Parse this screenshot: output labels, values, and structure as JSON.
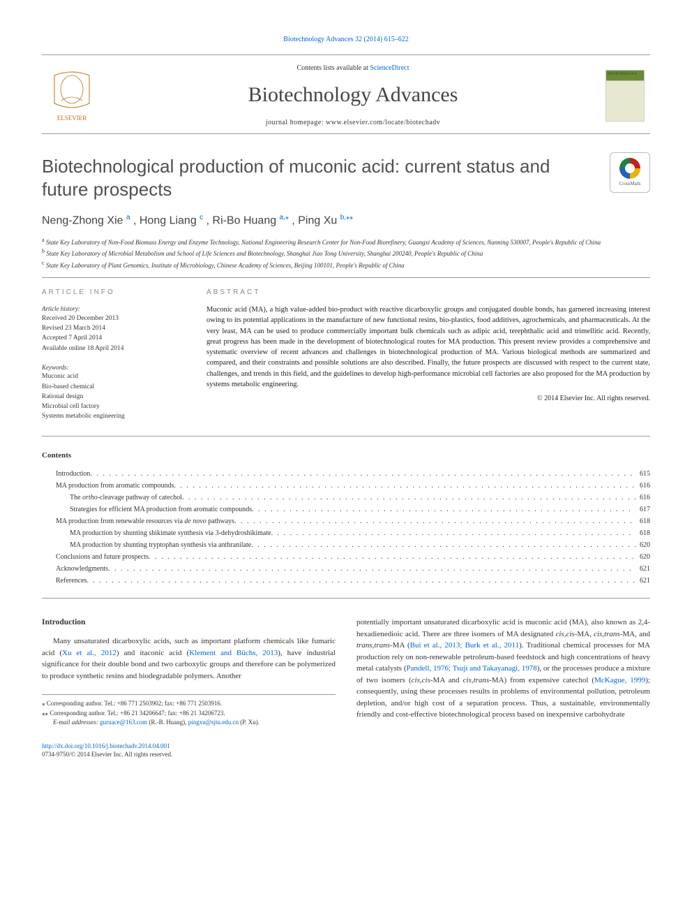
{
  "meta": {
    "citation_link": "Biotechnology Advances 32 (2014) 615–622",
    "contents_line_prefix": "Contents lists available at ",
    "contents_line_link": "ScienceDirect",
    "journal_title": "Biotechnology Advances",
    "journal_homepage": "journal homepage: www.elsevier.com/locate/biotechadv",
    "cover_text": "BIOTECHNOLOGY"
  },
  "crossmark": {
    "label": "CrossMark"
  },
  "title": "Biotechnological production of muconic acid: current status and future prospects",
  "authors": {
    "a1_name": "Neng-Zhong Xie ",
    "a1_sup": "a",
    "a2_name": ", Hong Liang ",
    "a2_sup": "c",
    "a3_name": ", Ri-Bo Huang ",
    "a3_sup": "a,",
    "a3_star": "⁎",
    "a4_name": ", Ping Xu ",
    "a4_sup": "b,",
    "a4_star": "⁎⁎"
  },
  "affils": {
    "a_sup": "a",
    "a": " State Key Laboratory of Non-Food Biomass Energy and Enzyme Technology, National Engineering Research Center for Non-Food Biorefinery, Guangxi Academy of Sciences, Nanning 530007, People's Republic of China",
    "b_sup": "b",
    "b": " State Key Laboratory of Microbial Metabolism and School of Life Sciences and Biotechnology, Shanghai Jiao Tong University, Shanghai 200240, People's Republic of China",
    "c_sup": "c",
    "c": " State Key Laboratory of Plant Genomics, Institute of Microbiology, Chinese Academy of Sciences, Beijing 100101, People's Republic of China"
  },
  "article_info": {
    "heading": "article info",
    "history_label": "Article history:",
    "h1": "Received 20 December 2013",
    "h2": "Revised 23 March 2014",
    "h3": "Accepted 7 April 2014",
    "h4": "Available online 18 April 2014",
    "kw_label": "Keywords:",
    "k1": "Muconic acid",
    "k2": "Bio-based chemical",
    "k3": "Rational design",
    "k4": "Microbial cell factory",
    "k5": "Systems metabolic engineering"
  },
  "abstract": {
    "heading": "abstract",
    "text": "Muconic acid (MA), a high value-added bio-product with reactive dicarboxylic groups and conjugated double bonds, has garnered increasing interest owing to its potential applications in the manufacture of new functional resins, bio-plastics, food additives, agrochemicals, and pharmaceuticals. At the very least, MA can be used to produce commercially important bulk chemicals such as adipic acid, terephthalic acid and trimellitic acid. Recently, great progress has been made in the development of biotechnological routes for MA production. This present review provides a comprehensive and systematic overview of recent advances and challenges in biotechnological production of MA. Various biological methods are summarized and compared, and their constraints and possible solutions are also described. Finally, the future prospects are discussed with respect to the current state, challenges, and trends in this field, and the guidelines to develop high-performance microbial cell factories are also proposed for the MA production by systems metabolic engineering.",
    "copyright": "© 2014 Elsevier Inc. All rights reserved."
  },
  "contents": {
    "heading": "Contents",
    "items": [
      {
        "label": "Introduction",
        "indent": 1,
        "page": "615",
        "italic_part": ""
      },
      {
        "label": "MA production from aromatic compounds",
        "indent": 1,
        "page": "616",
        "italic_part": ""
      },
      {
        "label_pre": "The ",
        "italic_part": "ortho",
        "label_post": "-cleavage pathway of catechol",
        "indent": 2,
        "page": "616"
      },
      {
        "label": "Strategies for efficient MA production from aromatic compounds",
        "indent": 2,
        "page": "617",
        "italic_part": ""
      },
      {
        "label_pre": "MA production from renewable resources via ",
        "italic_part": "de novo",
        "label_post": " pathways",
        "indent": 1,
        "page": "618"
      },
      {
        "label": "MA production by shunting shikimate synthesis via 3-dehydroshikimate",
        "indent": 2,
        "page": "618",
        "italic_part": ""
      },
      {
        "label": "MA production by shunting tryptophan synthesis via anthranilate",
        "indent": 2,
        "page": "620",
        "italic_part": ""
      },
      {
        "label": "Conclusions and future prospects",
        "indent": 1,
        "page": "620",
        "italic_part": ""
      },
      {
        "label": "Acknowledgments",
        "indent": 1,
        "page": "621",
        "italic_part": ""
      },
      {
        "label": "References",
        "indent": 1,
        "page": "621",
        "italic_part": ""
      }
    ]
  },
  "body": {
    "intro_heading": "Introduction",
    "left_para_1a": "Many unsaturated dicarboxylic acids, such as important platform chemicals like fumaric acid (",
    "left_link_1": "Xu et al., 2012",
    "left_para_1b": ") and itaconic acid (",
    "left_link_2": "Klement and Büchs, 2013",
    "left_para_1c": "), have industrial significance for their double bond and two carboxylic groups and therefore can be polymerized to produce synthetic resins and biodegradable polymers. Another",
    "right_para_1a": "potentially important unsaturated dicarboxylic acid is muconic acid (MA), also known as 2,4-hexadienedioic acid. There are three isomers of MA designated ",
    "right_em_1": "cis,cis",
    "right_para_1b": "-MA, ",
    "right_em_2": "cis,trans",
    "right_para_1c": "-MA, and ",
    "right_em_3": "trans,trans",
    "right_para_1d": "-MA (",
    "right_link_1": "Bui et al., 2013; Burk et al., 2011",
    "right_para_1e": "). Traditional chemical processes for MA production rely on non-renewable petroleum-based feedstock and high concentrations of heavy metal catalysts (",
    "right_link_2": "Pandell, 1976; Tsuji and Takayanagi, 1978",
    "right_para_1f": "), or the processes produce a mixture of two isomers (",
    "right_em_4": "cis,cis",
    "right_para_1g": "-MA and ",
    "right_em_5": "cis,trans",
    "right_para_1h": "-MA) from expensive catechol (",
    "right_link_3": "McKague, 1999",
    "right_para_1i": "); consequently, using these processes results in problems of environmental pollution, petroleum depletion, and/or high cost of a separation process. Thus, a sustainable, environmentally friendly and cost-effective biotechnological process based on inexpensive carbohydrate"
  },
  "footnotes": {
    "f1_star": "⁎",
    "f1": " Corresponding author. Tel.: +86 771 2503902; fax: +86 771 2503916.",
    "f2_star": "⁎⁎",
    "f2": " Corresponding author. Tel.: +86 21 34206647; fax: +86 21 34206723.",
    "email_label": "E-mail addresses: ",
    "email1": "guruace@163.com",
    "email1_who": " (R.-B. Huang), ",
    "email2": "pingxu@sjtu.edu.cn",
    "email2_who": " (P. Xu)."
  },
  "footer": {
    "doi": "http://dx.doi.org/10.1016/j.biotechadv.2014.04.001",
    "issn_line": "0734-9750/© 2014 Elsevier Inc. All rights reserved."
  },
  "colors": {
    "link": "#0066cc",
    "text": "#333333",
    "rule": "#999999",
    "heading_grey": "#888888"
  }
}
